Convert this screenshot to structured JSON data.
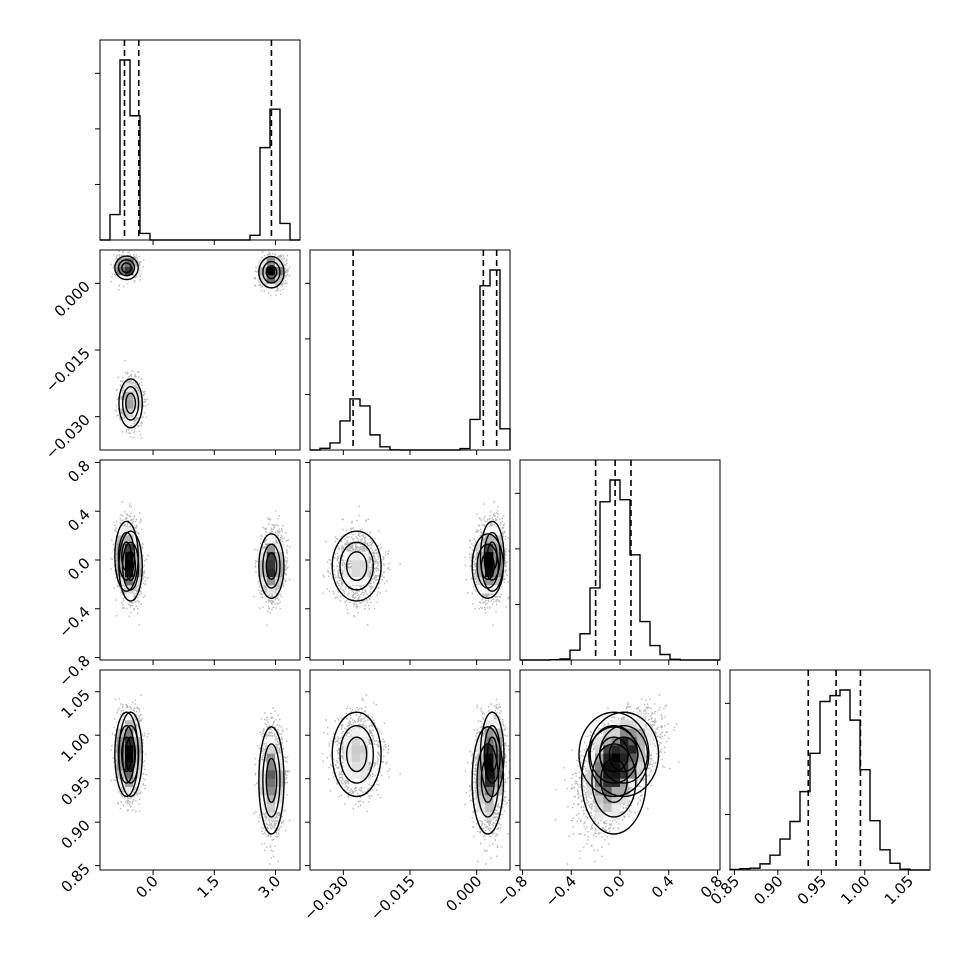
{
  "chart_data": {
    "type": "corner",
    "title": "",
    "parameters": [
      {
        "label": "",
        "range": [
          -1.3,
          3.6
        ],
        "ticks": [
          0.0,
          1.5,
          3.0
        ],
        "tick_labels": [
          "0.0",
          "1.5",
          "3.0"
        ],
        "quantiles": [
          -0.7,
          -0.35,
          2.9
        ]
      },
      {
        "label": "",
        "range": [
          -0.0375,
          0.0075
        ],
        "ticks": [
          -0.03,
          -0.015,
          0.0
        ],
        "tick_labels": [
          "−0.030",
          "−0.015",
          "0.000"
        ],
        "quantiles": [
          -0.0278,
          0.0015,
          0.0045
        ]
      },
      {
        "label": "",
        "range": [
          -0.82,
          0.82
        ],
        "ticks": [
          -0.8,
          -0.4,
          0.0,
          0.4,
          0.8
        ],
        "tick_labels": [
          "−0.8",
          "−0.4",
          "0.0",
          "0.4",
          "0.8"
        ],
        "quantiles": [
          -0.2,
          -0.04,
          0.09
        ]
      },
      {
        "label": "",
        "range": [
          0.845,
          1.075
        ],
        "ticks": [
          0.85,
          0.9,
          0.95,
          1.0,
          1.05
        ],
        "tick_labels": [
          "0.85",
          "0.90",
          "0.95",
          "1.00",
          "1.05"
        ],
        "quantiles": [
          0.935,
          0.967,
          0.995
        ]
      }
    ],
    "modes": [
      {
        "weight": 0.3,
        "mean": [
          -0.65,
          0.0035,
          0.03,
          0.978
        ],
        "sd": [
          0.13,
          0.0012,
          0.13,
          0.022
        ]
      },
      {
        "weight": 0.28,
        "mean": [
          -0.55,
          -0.027,
          -0.05,
          0.978
        ],
        "sd": [
          0.13,
          0.0025,
          0.13,
          0.022
        ]
      },
      {
        "weight": 0.42,
        "mean": [
          2.9,
          0.0025,
          -0.05,
          0.948
        ],
        "sd": [
          0.14,
          0.0016,
          0.12,
          0.028
        ]
      }
    ],
    "correlation_2_3": 0.5,
    "histogram_bins": 20,
    "grid": true,
    "quantile_lines": "dashed",
    "legend": "none"
  }
}
